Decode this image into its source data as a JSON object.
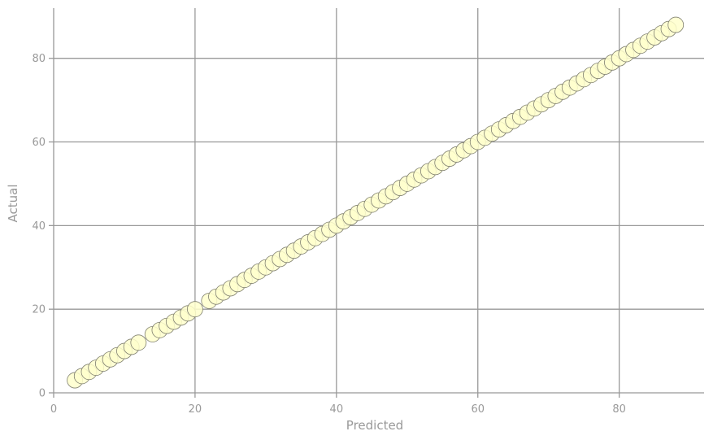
{
  "chart_data": {
    "type": "scatter",
    "xlabel": "Predicted",
    "ylabel": "Actual",
    "xlim": [
      0,
      92
    ],
    "ylim": [
      0,
      92
    ],
    "xticks": [
      "0",
      "20",
      "40",
      "60",
      "80"
    ],
    "yticks": [
      "0",
      "20",
      "40",
      "60",
      "80"
    ],
    "grid": true,
    "colors": {
      "point_fill": "#ffffcc",
      "point_edge": "#808070",
      "grid": "#999999",
      "text": "#999999"
    },
    "points": [
      [
        3,
        3
      ],
      [
        4,
        4
      ],
      [
        5,
        5
      ],
      [
        6,
        6
      ],
      [
        7,
        7
      ],
      [
        8,
        8
      ],
      [
        9,
        9
      ],
      [
        10,
        10
      ],
      [
        11,
        11
      ],
      [
        12,
        12
      ],
      [
        14,
        14
      ],
      [
        15,
        15
      ],
      [
        16,
        16
      ],
      [
        17,
        17
      ],
      [
        18,
        18
      ],
      [
        19,
        19
      ],
      [
        20,
        20
      ],
      [
        22,
        22
      ],
      [
        23,
        23
      ],
      [
        24,
        24
      ],
      [
        25,
        25
      ],
      [
        26,
        26
      ],
      [
        27,
        27
      ],
      [
        28,
        28
      ],
      [
        29,
        29
      ],
      [
        30,
        30
      ],
      [
        31,
        31
      ],
      [
        32,
        32
      ],
      [
        33,
        33
      ],
      [
        34,
        34
      ],
      [
        35,
        35
      ],
      [
        36,
        36
      ],
      [
        37,
        37
      ],
      [
        38,
        38
      ],
      [
        39,
        39
      ],
      [
        40,
        40
      ],
      [
        41,
        41
      ],
      [
        42,
        42
      ],
      [
        43,
        43
      ],
      [
        44,
        44
      ],
      [
        45,
        45
      ],
      [
        46,
        46
      ],
      [
        47,
        47
      ],
      [
        48,
        48
      ],
      [
        49,
        49
      ],
      [
        50,
        50
      ],
      [
        51,
        51
      ],
      [
        52,
        52
      ],
      [
        53,
        53
      ],
      [
        54,
        54
      ],
      [
        55,
        55
      ],
      [
        56,
        56
      ],
      [
        57,
        57
      ],
      [
        58,
        58
      ],
      [
        59,
        59
      ],
      [
        60,
        60
      ],
      [
        61,
        61
      ],
      [
        62,
        62
      ],
      [
        63,
        63
      ],
      [
        64,
        64
      ],
      [
        65,
        65
      ],
      [
        66,
        66
      ],
      [
        67,
        67
      ],
      [
        68,
        68
      ],
      [
        69,
        69
      ],
      [
        70,
        70
      ],
      [
        71,
        71
      ],
      [
        72,
        72
      ],
      [
        73,
        73
      ],
      [
        74,
        74
      ],
      [
        75,
        75
      ],
      [
        76,
        76
      ],
      [
        77,
        77
      ],
      [
        78,
        78
      ],
      [
        79,
        79
      ],
      [
        80,
        80
      ],
      [
        81,
        81
      ],
      [
        82,
        82
      ],
      [
        83,
        83
      ],
      [
        84,
        84
      ],
      [
        85,
        85
      ],
      [
        86,
        86
      ],
      [
        87,
        87
      ],
      [
        88,
        88
      ]
    ]
  }
}
